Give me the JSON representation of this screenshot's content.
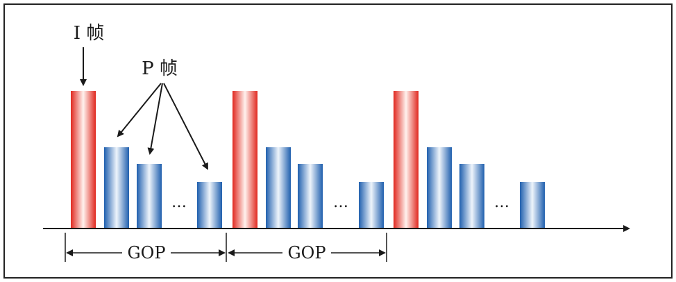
{
  "labels": {
    "i_frame": "I 帧",
    "p_frame": "P 帧",
    "ellipsis": "…",
    "gop": "GOP"
  },
  "colors": {
    "i_frame": "#e8382e",
    "p_frame": "#2a6db5",
    "line": "#1a1a1a",
    "border": "#222222"
  },
  "frame_groups": [
    {
      "gop_label": "GOP",
      "frames": [
        "I",
        "P",
        "P",
        "…",
        "P"
      ]
    },
    {
      "gop_label": "GOP",
      "frames": [
        "I",
        "P",
        "P",
        "…",
        "P"
      ]
    },
    {
      "gop_label": "",
      "frames": [
        "I",
        "P",
        "P",
        "…",
        "P"
      ]
    }
  ]
}
